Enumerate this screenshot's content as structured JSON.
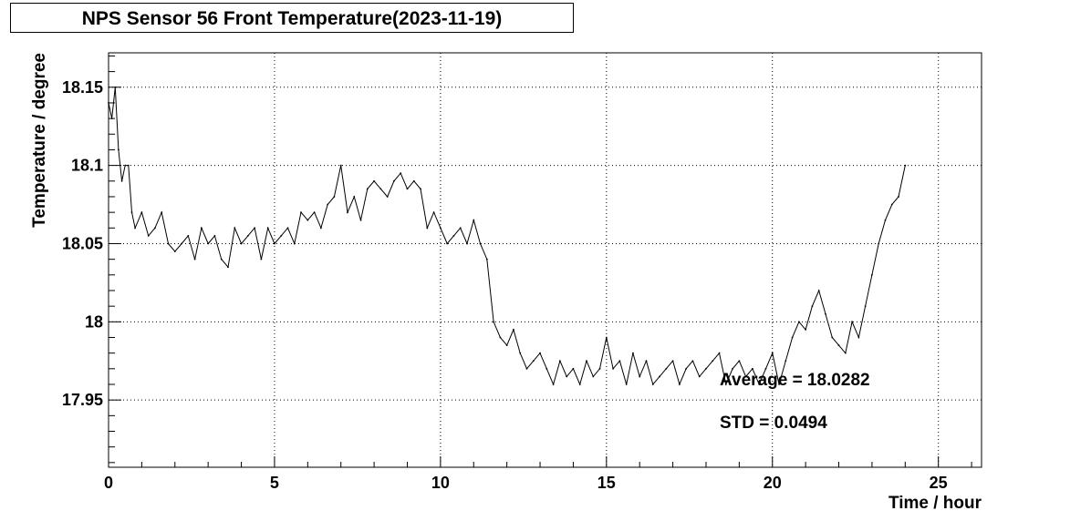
{
  "chart_data": {
    "type": "line",
    "title": "NPS Sensor 56 Front Temperature(2023-11-19)",
    "xlabel": "Time / hour",
    "ylabel": "Temperature / degree",
    "xlim": [
      0,
      26.3
    ],
    "ylim": [
      17.907,
      18.172
    ],
    "x_ticks": [
      0,
      5,
      10,
      15,
      20,
      25
    ],
    "y_ticks": [
      17.95,
      18,
      18.05,
      18.1,
      18.15
    ],
    "y_tick_labels": [
      "17.95",
      "18",
      "18.05",
      "18.1",
      "18.15"
    ],
    "grid": true,
    "line_color": "#000000",
    "annotations": [
      "Average = 18.0282",
      "STD = 0.0494"
    ],
    "series": [
      {
        "x": [
          0.0,
          0.1,
          0.2,
          0.3,
          0.4,
          0.5,
          0.6,
          0.7,
          0.8,
          1.0,
          1.2,
          1.4,
          1.6,
          1.8,
          2.0,
          2.2,
          2.4,
          2.6,
          2.8,
          3.0,
          3.2,
          3.4,
          3.6,
          3.8,
          4.0,
          4.2,
          4.4,
          4.6,
          4.8,
          5.0,
          5.2,
          5.4,
          5.6,
          5.8,
          6.0,
          6.2,
          6.4,
          6.6,
          6.8,
          7.0,
          7.2,
          7.4,
          7.6,
          7.8,
          8.0,
          8.2,
          8.4,
          8.6,
          8.8,
          9.0,
          9.2,
          9.4,
          9.6,
          9.8,
          10.0,
          10.2,
          10.4,
          10.6,
          10.8,
          11.0,
          11.2,
          11.4,
          11.6,
          11.8,
          12.0,
          12.2,
          12.4,
          12.6,
          12.8,
          13.0,
          13.2,
          13.4,
          13.6,
          13.8,
          14.0,
          14.2,
          14.4,
          14.6,
          14.8,
          15.0,
          15.2,
          15.4,
          15.6,
          15.8,
          16.0,
          16.2,
          16.4,
          16.6,
          16.8,
          17.0,
          17.2,
          17.4,
          17.6,
          17.8,
          18.0,
          18.2,
          18.4,
          18.6,
          18.8,
          19.0,
          19.2,
          19.4,
          19.6,
          19.8,
          20.0,
          20.2,
          20.4,
          20.6,
          20.8,
          21.0,
          21.2,
          21.4,
          21.6,
          21.8,
          22.0,
          22.2,
          22.4,
          22.6,
          22.8,
          23.0,
          23.2,
          23.4,
          23.6,
          23.8,
          24.0
        ],
        "y": [
          18.14,
          18.13,
          18.15,
          18.11,
          18.09,
          18.1,
          18.1,
          18.07,
          18.06,
          18.07,
          18.055,
          18.06,
          18.07,
          18.05,
          18.045,
          18.05,
          18.055,
          18.04,
          18.06,
          18.05,
          18.055,
          18.04,
          18.035,
          18.06,
          18.05,
          18.055,
          18.06,
          18.04,
          18.06,
          18.05,
          18.055,
          18.06,
          18.05,
          18.07,
          18.065,
          18.07,
          18.06,
          18.075,
          18.08,
          18.1,
          18.07,
          18.08,
          18.065,
          18.085,
          18.09,
          18.085,
          18.08,
          18.09,
          18.095,
          18.085,
          18.09,
          18.085,
          18.06,
          18.07,
          18.06,
          18.05,
          18.055,
          18.06,
          18.05,
          18.065,
          18.05,
          18.04,
          18.0,
          17.99,
          17.985,
          17.995,
          17.98,
          17.97,
          17.975,
          17.98,
          17.97,
          17.96,
          17.975,
          17.965,
          17.97,
          17.96,
          17.975,
          17.965,
          17.97,
          17.99,
          17.97,
          17.975,
          17.96,
          17.98,
          17.965,
          17.975,
          17.96,
          17.965,
          17.97,
          17.975,
          17.96,
          17.97,
          17.975,
          17.965,
          17.97,
          17.975,
          17.98,
          17.96,
          17.97,
          17.975,
          17.965,
          17.97,
          17.96,
          17.97,
          17.98,
          17.96,
          17.975,
          17.99,
          18.0,
          17.995,
          18.01,
          18.02,
          18.005,
          17.99,
          17.985,
          17.98,
          18.0,
          17.99,
          18.01,
          18.03,
          18.05,
          18.065,
          18.075,
          18.08,
          18.1
        ]
      }
    ]
  }
}
